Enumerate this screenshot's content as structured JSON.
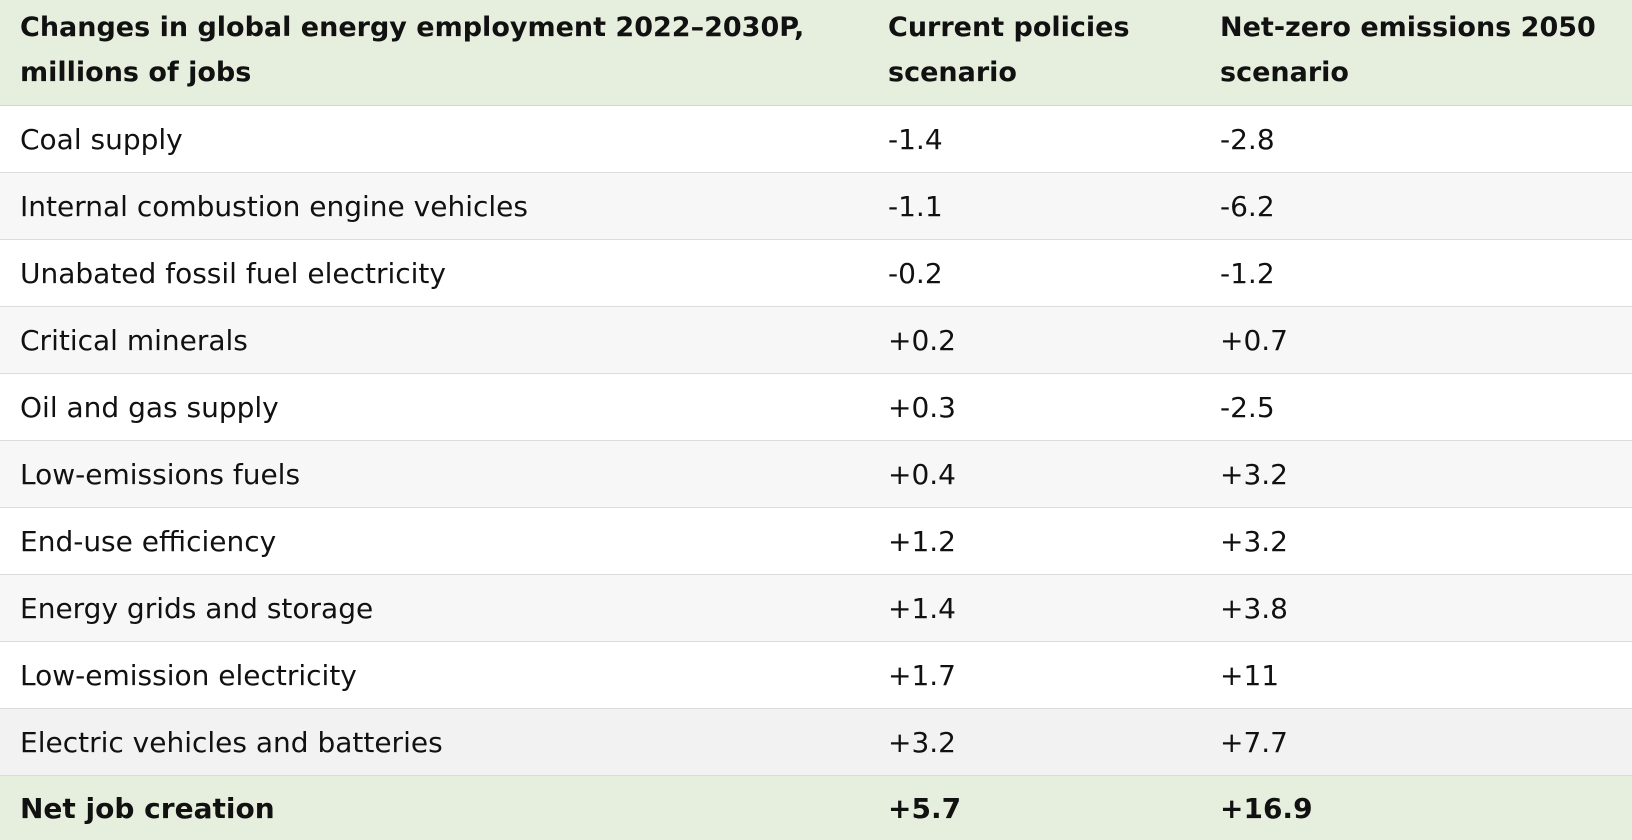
{
  "table": {
    "headers": [
      "Changes in global energy employment 2022–2030P, millions of jobs",
      "Current policies scenario",
      "Net-zero emissions 2050 scenario"
    ],
    "rows": [
      {
        "label": "Coal supply",
        "current": "-1.4",
        "netzero": "-2.8"
      },
      {
        "label": "Internal combustion engine vehicles",
        "current": "-1.1",
        "netzero": "-6.2"
      },
      {
        "label": "Unabated fossil fuel electricity",
        "current": "-0.2",
        "netzero": "-1.2"
      },
      {
        "label": "Critical minerals",
        "current": "+0.2",
        "netzero": "+0.7"
      },
      {
        "label": "Oil and gas supply",
        "current": "+0.3",
        "netzero": "-2.5"
      },
      {
        "label": "Low-emissions fuels",
        "current": "+0.4",
        "netzero": "+3.2"
      },
      {
        "label": "End-use efficiency",
        "current": "+1.2",
        "netzero": "+3.2"
      },
      {
        "label": "Energy grids and storage",
        "current": "+1.4",
        "netzero": "+3.8"
      },
      {
        "label": "Low-emission electricity",
        "current": "+1.7",
        "netzero": "+11"
      },
      {
        "label": "Electric vehicles and batteries",
        "current": "+3.2",
        "netzero": "+7.7"
      }
    ],
    "total": {
      "label": "Net job creation",
      "current": "+5.7",
      "netzero": "+16.9"
    }
  },
  "colors": {
    "header_bg": "#e6eedd",
    "row_alt_bg": "#f7f7f7",
    "text": "#111111"
  }
}
